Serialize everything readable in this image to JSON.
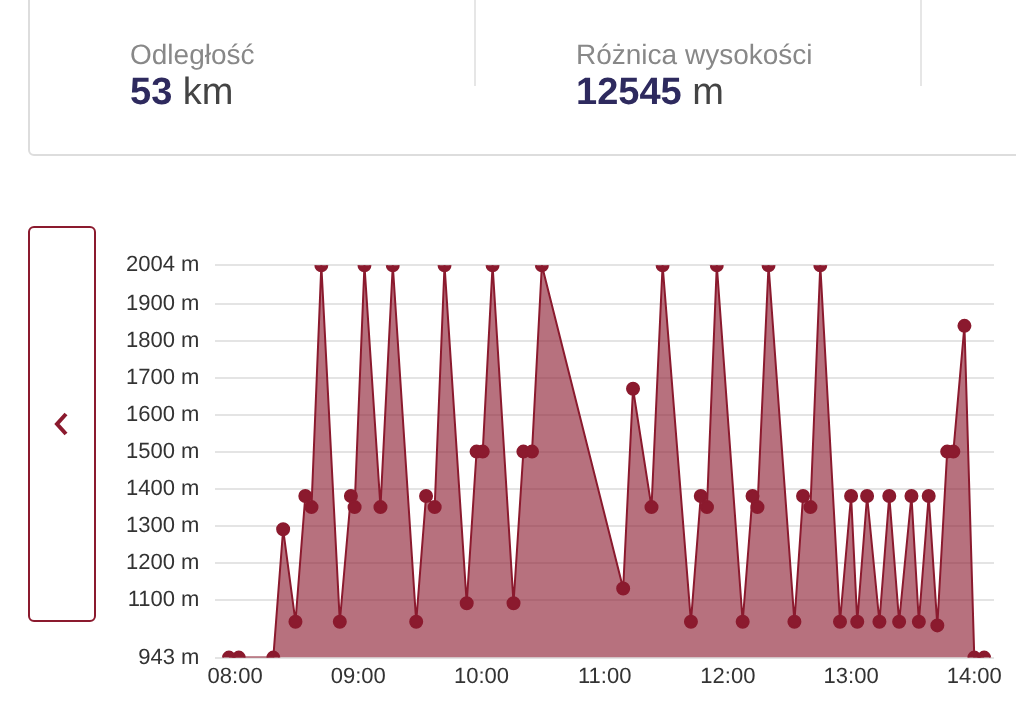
{
  "chart_data": {
    "type": "area",
    "annotations": [
      "Odległość",
      "53 km",
      "Różnica wysokości",
      "12545 m"
    ],
    "x": [
      7.95,
      8.03,
      8.31,
      8.39,
      8.49,
      8.57,
      8.62,
      8.7,
      8.85,
      8.94,
      8.97,
      9.05,
      9.18,
      9.28,
      9.47,
      9.55,
      9.62,
      9.7,
      9.88,
      9.96,
      10.01,
      10.09,
      10.26,
      10.34,
      10.41,
      10.49,
      11.15,
      11.23,
      11.38,
      11.47,
      11.7,
      11.78,
      11.83,
      11.91,
      12.12,
      12.2,
      12.24,
      12.33,
      12.54,
      12.61,
      12.67,
      12.75,
      12.91,
      13.0,
      13.05,
      13.13,
      13.23,
      13.31,
      13.39,
      13.49,
      13.55,
      13.63,
      13.7,
      13.78,
      13.83,
      13.92,
      14.0,
      14.08
    ],
    "series": [
      {
        "color": "#8b1a2e",
        "values": [
          943,
          943,
          943,
          1290,
          1040,
          1380,
          1350,
          2004,
          1040,
          1380,
          1350,
          2004,
          1350,
          2004,
          1040,
          1380,
          1350,
          2004,
          1090,
          1500,
          1500,
          2004,
          1090,
          1500,
          1500,
          2004,
          1130,
          1670,
          1350,
          2004,
          1040,
          1380,
          1350,
          2004,
          1040,
          1380,
          1350,
          2004,
          1040,
          1380,
          1350,
          2004,
          1040,
          1380,
          1040,
          1380,
          1040,
          1380,
          1040,
          1380,
          1040,
          1380,
          1030,
          1500,
          1500,
          1840,
          943,
          943
        ]
      }
    ],
    "xlim": [
      7.84,
      14.16
    ],
    "xticks": [
      {
        "value": 8,
        "label": "08:00"
      },
      {
        "value": 9,
        "label": "09:00"
      },
      {
        "value": 10,
        "label": "10:00"
      },
      {
        "value": 11,
        "label": "11:00"
      },
      {
        "value": 12,
        "label": "12:00"
      },
      {
        "value": 13,
        "label": "13:00"
      },
      {
        "value": 14,
        "label": "14:00"
      }
    ],
    "ylim": [
      943,
      2004
    ],
    "yticks": [
      {
        "value": 943,
        "label": "943 m"
      },
      {
        "value": 1100,
        "label": "1100 m"
      },
      {
        "value": 1200,
        "label": "1200 m"
      },
      {
        "value": 1300,
        "label": "1300 m"
      },
      {
        "value": 1400,
        "label": "1400 m"
      },
      {
        "value": 1500,
        "label": "1500 m"
      },
      {
        "value": 1600,
        "label": "1600 m"
      },
      {
        "value": 1700,
        "label": "1700 m"
      },
      {
        "value": 1800,
        "label": "1800 m"
      },
      {
        "value": 1900,
        "label": "1900 m"
      },
      {
        "value": 2004,
        "label": "2004 m"
      }
    ],
    "grid": "y",
    "marker": "circle",
    "line_style": "solid"
  }
}
